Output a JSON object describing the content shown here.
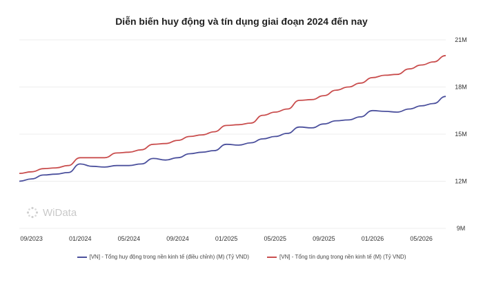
{
  "chart_data": {
    "type": "line",
    "title": "Diễn biến huy động và tín dụng giai đoạn 2024 đến nay",
    "xlabel": "",
    "ylabel": "",
    "x_ticks": [
      "09/2023",
      "01/2024",
      "05/2024",
      "09/2024",
      "01/2025",
      "05/2025",
      "09/2025",
      "01/2026",
      "05/2026"
    ],
    "y_ticks": [
      "21M",
      "18M",
      "15M",
      "12M",
      "9M"
    ],
    "ylim": [
      9,
      21
    ],
    "y_axis_position": "right",
    "grid": "horizontal",
    "legend_position": "bottom",
    "x": [
      "08/2023",
      "09/2023",
      "10/2023",
      "11/2023",
      "12/2023",
      "01/2024",
      "02/2024",
      "03/2024",
      "04/2024",
      "05/2024",
      "06/2024",
      "07/2024",
      "08/2024",
      "09/2024",
      "10/2024",
      "11/2024",
      "12/2024",
      "01/2025",
      "02/2025",
      "03/2025",
      "04/2025",
      "05/2025",
      "06/2025",
      "07/2025",
      "08/2025",
      "09/2025",
      "10/2025",
      "11/2025",
      "12/2025",
      "01/2026",
      "02/2026",
      "03/2026",
      "04/2026",
      "05/2026",
      "06/2026",
      "07/2026"
    ],
    "series": [
      {
        "name": "[VN] - Tổng huy động trong nền kinh tế (điều chỉnh) (M) (Tỷ VND)",
        "color": "#4a4f9c",
        "values": [
          12.0,
          12.15,
          12.4,
          12.45,
          12.55,
          13.1,
          12.95,
          12.9,
          13.0,
          13.0,
          13.1,
          13.45,
          13.35,
          13.5,
          13.75,
          13.85,
          13.95,
          14.35,
          14.3,
          14.45,
          14.7,
          14.85,
          15.05,
          15.45,
          15.4,
          15.65,
          15.85,
          15.9,
          16.1,
          16.5,
          16.45,
          16.4,
          16.6,
          16.8,
          16.95,
          17.4
        ]
      },
      {
        "name": "[VN] - Tổng tín dụng trong nền kinh tế (M) (Tỷ VND)",
        "color": "#c94d4d",
        "values": [
          12.5,
          12.6,
          12.8,
          12.85,
          13.0,
          13.5,
          13.5,
          13.5,
          13.8,
          13.85,
          14.0,
          14.35,
          14.4,
          14.6,
          14.85,
          14.95,
          15.15,
          15.55,
          15.6,
          15.7,
          16.2,
          16.4,
          16.6,
          17.15,
          17.2,
          17.45,
          17.8,
          18.0,
          18.25,
          18.6,
          18.75,
          18.8,
          19.15,
          19.4,
          19.6,
          20.0
        ]
      }
    ]
  },
  "watermark": {
    "text": "WiData",
    "icon": "widata-logo-icon"
  }
}
